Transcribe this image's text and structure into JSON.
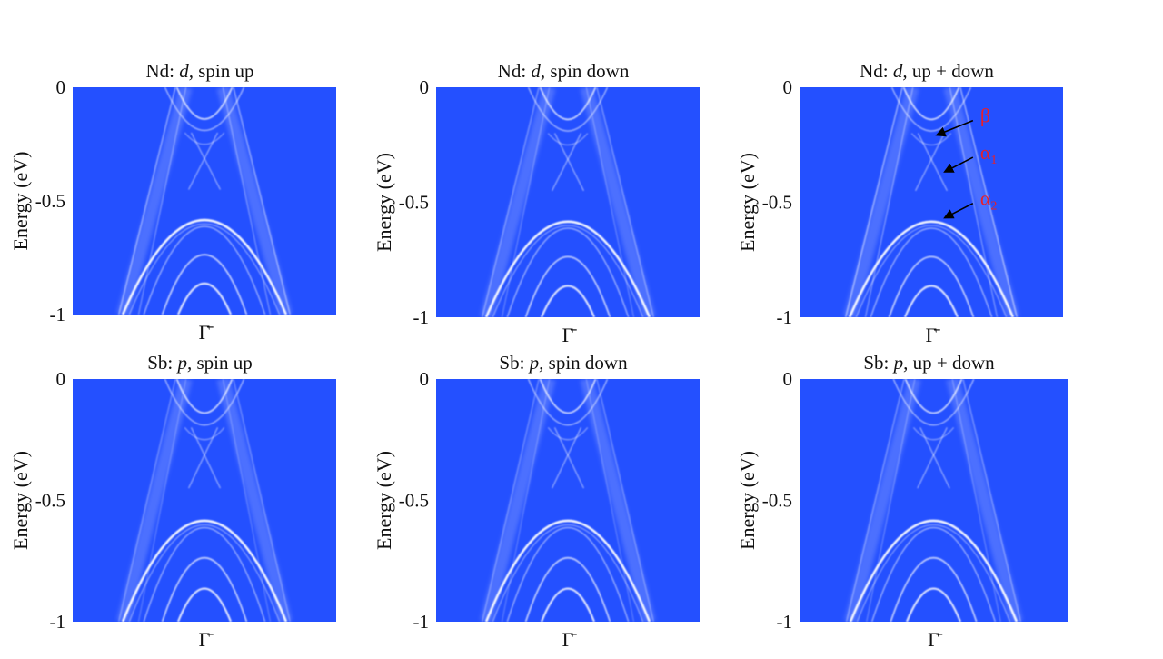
{
  "colors": {
    "panel_bg": "#2450ff",
    "band": "#ffffff",
    "annotation": "#e8202a",
    "arrow": "#000000",
    "text": "#111111"
  },
  "ylabel": "Energy (eV)",
  "xtick": "Γ̄",
  "ytick_labels": [
    "0",
    "-0.5",
    "-1"
  ],
  "chart_data": [
    {
      "type": "heatmap",
      "element": "Nd:",
      "orbital": "d,",
      "spin": "spin up",
      "title": "Nd: d, spin up",
      "ylabel": "Energy (eV)",
      "ylim": [
        -1,
        0
      ],
      "yticks": [
        0,
        -0.5,
        -1
      ],
      "xticks": [
        "Γ̄"
      ],
      "grid": false,
      "legend": "none",
      "features": {
        "cone_vertex_energy": -0.27,
        "hole_band_top": -0.58,
        "sub_band_tops": [
          -0.73,
          -0.86
        ],
        "outer_band_strength": 0.45
      }
    },
    {
      "type": "heatmap",
      "element": "Nd:",
      "orbital": "d,",
      "spin": "spin down",
      "title": "Nd: d, spin down",
      "ylabel": "Energy (eV)",
      "ylim": [
        -1,
        0
      ],
      "yticks": [
        0,
        -0.5,
        -1
      ],
      "xticks": [
        "Γ̄"
      ],
      "grid": false,
      "legend": "none",
      "features": {
        "cone_vertex_energy": -0.27,
        "hole_band_top": -0.58,
        "sub_band_tops": [
          -0.73,
          -0.86
        ],
        "outer_band_strength": 0.35
      }
    },
    {
      "type": "heatmap",
      "element": "Nd:",
      "orbital": "d,",
      "spin": "up + down",
      "title": "Nd: d, up + down",
      "ylabel": "Energy (eV)",
      "ylim": [
        -1,
        0
      ],
      "yticks": [
        0,
        -0.5,
        -1
      ],
      "xticks": [
        "Γ̄"
      ],
      "grid": false,
      "legend": "none",
      "features": {
        "cone_vertex_energy": -0.27,
        "hole_band_top": -0.58,
        "sub_band_tops": [
          -0.73,
          -0.86
        ],
        "outer_band_strength": 0.5
      },
      "annotations": [
        {
          "label": "β",
          "sub": "",
          "energy": -0.2
        },
        {
          "label": "α",
          "sub": "1",
          "energy": -0.36
        },
        {
          "label": "α",
          "sub": "2",
          "energy": -0.56
        }
      ]
    },
    {
      "type": "heatmap",
      "element": "Sb:",
      "orbital": "p,",
      "spin": "spin up",
      "title": "Sb: p, spin up",
      "ylabel": "Energy (eV)",
      "ylim": [
        -1,
        0
      ],
      "yticks": [
        0,
        -0.5,
        -1
      ],
      "xticks": [
        "Γ̄"
      ],
      "grid": false,
      "legend": "none",
      "features": {
        "cone_vertex_energy": -0.27,
        "hole_band_top": -0.58,
        "sub_band_tops": [
          -0.73,
          -0.86
        ],
        "outer_band_strength": 0.3
      }
    },
    {
      "type": "heatmap",
      "element": "Sb:",
      "orbital": "p,",
      "spin": "spin down",
      "title": "Sb: p, spin down",
      "ylabel": "Energy (eV)",
      "ylim": [
        -1,
        0
      ],
      "yticks": [
        0,
        -0.5,
        -1
      ],
      "xticks": [
        "Γ̄"
      ],
      "grid": false,
      "legend": "none",
      "features": {
        "cone_vertex_energy": -0.27,
        "hole_band_top": -0.58,
        "sub_band_tops": [
          -0.73,
          -0.86
        ],
        "outer_band_strength": 0.3
      }
    },
    {
      "type": "heatmap",
      "element": "Sb:",
      "orbital": "p,",
      "spin": "up + down",
      "title": "Sb: p, up + down",
      "ylabel": "Energy (eV)",
      "ylim": [
        -1,
        0
      ],
      "yticks": [
        0,
        -0.5,
        -1
      ],
      "xticks": [
        "Γ̄"
      ],
      "grid": false,
      "legend": "none",
      "features": {
        "cone_vertex_energy": -0.27,
        "hole_band_top": -0.58,
        "sub_band_tops": [
          -0.73,
          -0.86
        ],
        "outer_band_strength": 0.35
      }
    }
  ]
}
